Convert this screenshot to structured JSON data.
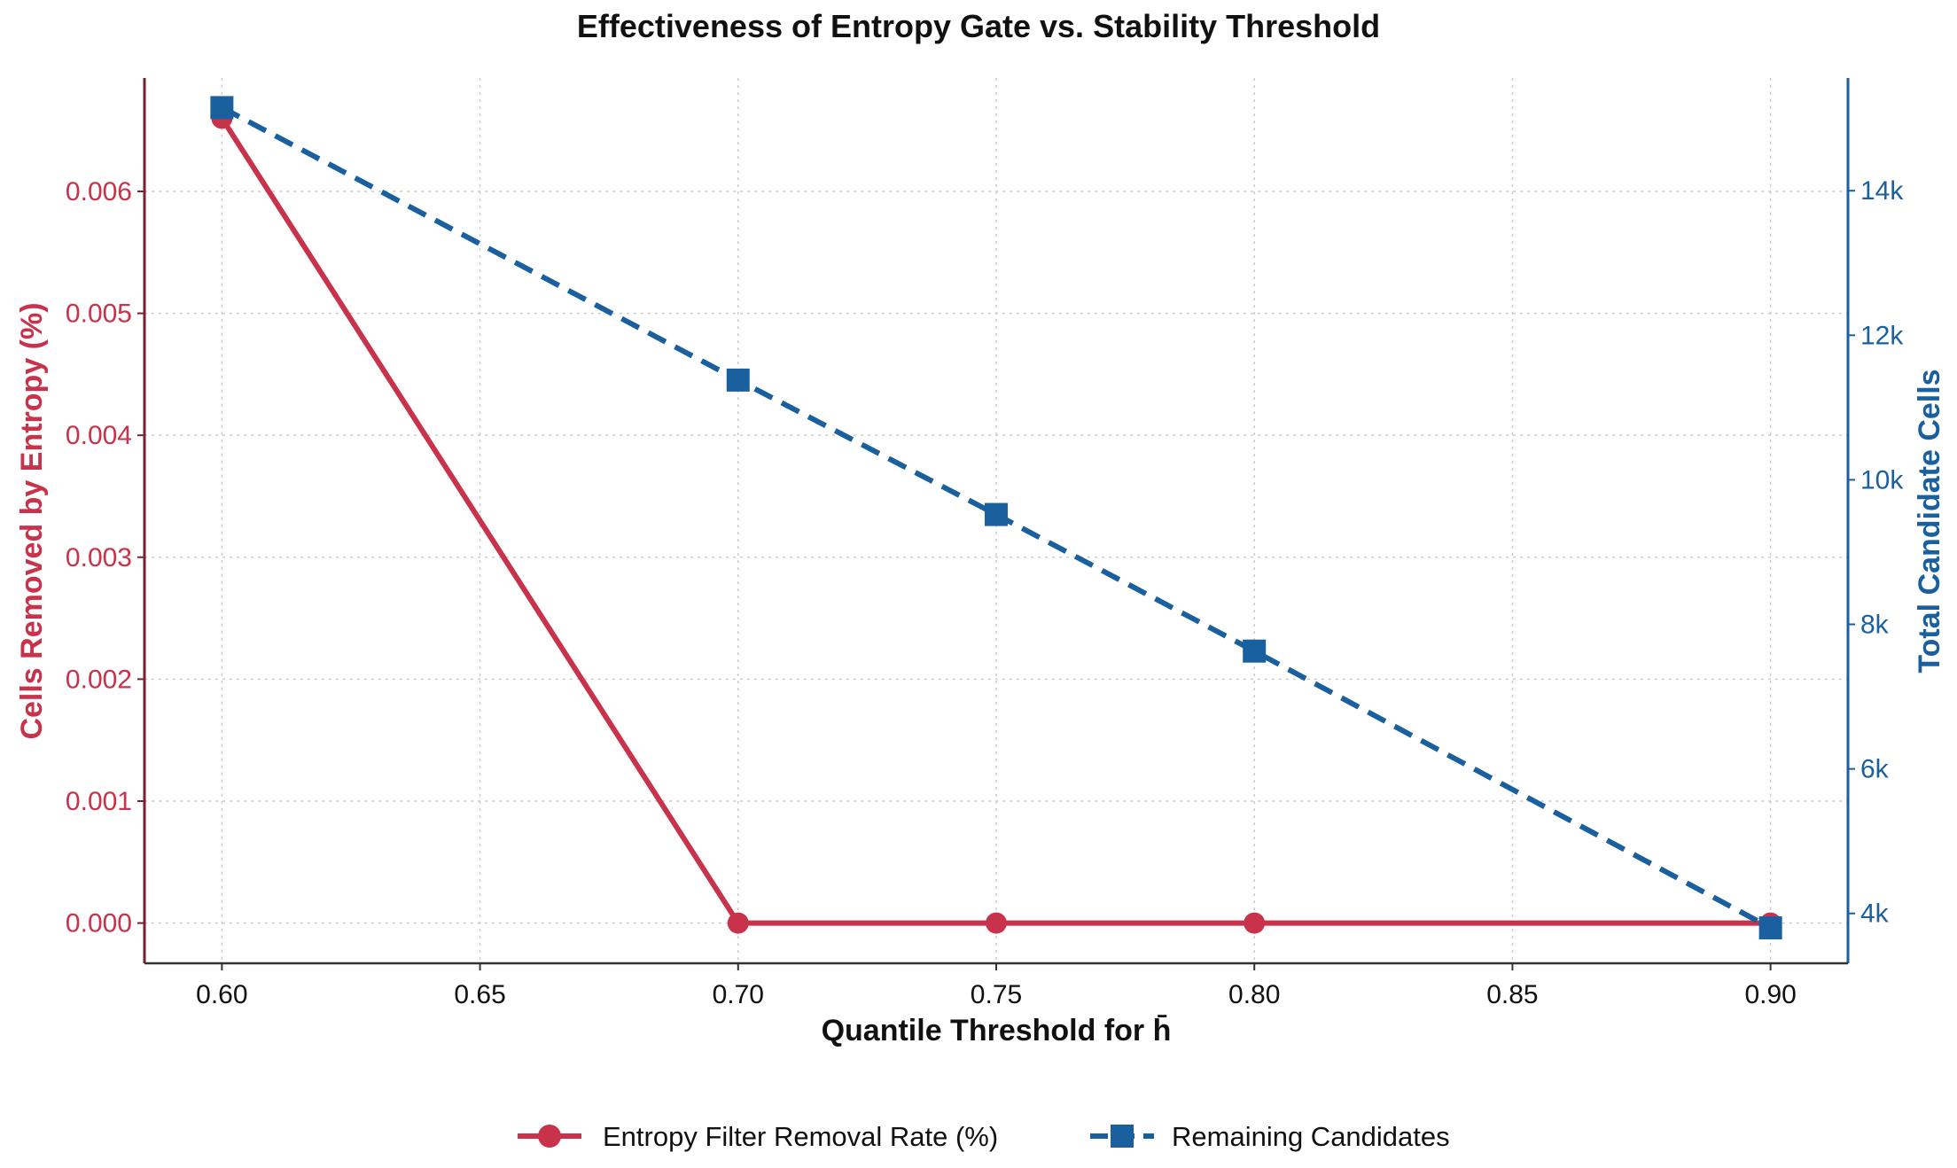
{
  "chart_data": {
    "type": "line",
    "title": "Effectiveness of Entropy Gate vs. Stability Threshold",
    "xlabel": "Quantile Threshold for h̄",
    "ylabel_left": "Cells Removed by Entropy (%)",
    "ylabel_right": "Total Candidate Cells",
    "x": [
      0.6,
      0.7,
      0.75,
      0.8,
      0.9
    ],
    "xlim": [
      0.585,
      0.915
    ],
    "ylim_left": [
      -0.00033,
      0.00693
    ],
    "ylim_right": [
      3310,
      15560
    ],
    "x_ticks": [
      0.6,
      0.65,
      0.7,
      0.75,
      0.8,
      0.85,
      0.9
    ],
    "x_tick_labels": [
      "0.60",
      "0.65",
      "0.70",
      "0.75",
      "0.80",
      "0.85",
      "0.90"
    ],
    "y_left_ticks": [
      0.0,
      0.001,
      0.002,
      0.003,
      0.004,
      0.005,
      0.006
    ],
    "y_left_tick_labels": [
      "0.000",
      "0.001",
      "0.002",
      "0.003",
      "0.004",
      "0.005",
      "0.006"
    ],
    "y_right_ticks": [
      4000,
      6000,
      8000,
      10000,
      12000,
      14000
    ],
    "y_right_tick_labels": [
      "4k",
      "6k",
      "8k",
      "10k",
      "12k",
      "14k"
    ],
    "grid": true,
    "legend_position": "bottom-center",
    "series": [
      {
        "name": "Entropy Filter Removal Rate (%)",
        "axis": "left",
        "color": "#c8324a",
        "marker": "circle",
        "style": "solid",
        "values": [
          0.0066,
          0.0,
          0.0,
          0.0,
          0.0
        ]
      },
      {
        "name": "Remaining Candidates",
        "axis": "right",
        "color": "#1a5f9e",
        "marker": "square",
        "style": "dashed",
        "values": [
          15150,
          11380,
          9520,
          7630,
          3800
        ]
      }
    ]
  }
}
